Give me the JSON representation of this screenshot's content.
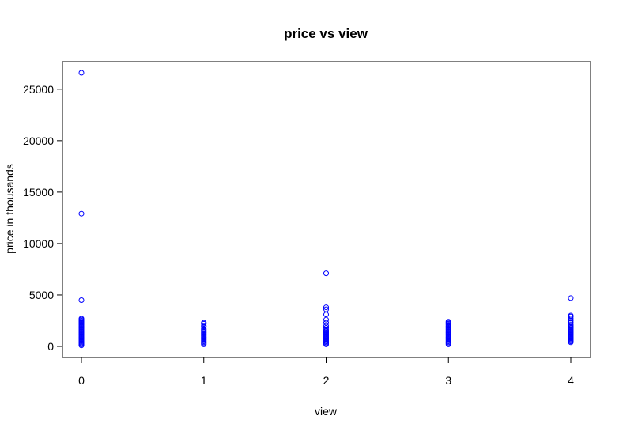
{
  "chart_data": {
    "type": "scatter",
    "title": "price vs view",
    "xlabel": "view",
    "ylabel": "price in thousands",
    "xlim": [
      0,
      4
    ],
    "ylim": [
      0,
      26600
    ],
    "x_ticks": [
      0,
      1,
      2,
      3,
      4
    ],
    "y_ticks": [
      0,
      5000,
      10000,
      15000,
      20000,
      25000
    ],
    "point_color": "#0000ff",
    "grid": false,
    "series": [
      {
        "name": "price",
        "points": [
          {
            "x": 0,
            "y": 26600
          },
          {
            "x": 0,
            "y": 12900
          },
          {
            "x": 0,
            "y": 4500
          },
          {
            "x": 0,
            "y": 2700
          },
          {
            "x": 0,
            "y": 2600
          },
          {
            "x": 0,
            "y": 2500
          },
          {
            "x": 0,
            "y": 2400
          },
          {
            "x": 0,
            "y": 2300
          },
          {
            "x": 0,
            "y": 2200
          },
          {
            "x": 0,
            "y": 2100
          },
          {
            "x": 0,
            "y": 2000
          },
          {
            "x": 0,
            "y": 1900
          },
          {
            "x": 0,
            "y": 1800
          },
          {
            "x": 0,
            "y": 1700
          },
          {
            "x": 0,
            "y": 1600
          },
          {
            "x": 0,
            "y": 1500
          },
          {
            "x": 0,
            "y": 1400
          },
          {
            "x": 0,
            "y": 1300
          },
          {
            "x": 0,
            "y": 1200
          },
          {
            "x": 0,
            "y": 1100
          },
          {
            "x": 0,
            "y": 1000
          },
          {
            "x": 0,
            "y": 900
          },
          {
            "x": 0,
            "y": 800
          },
          {
            "x": 0,
            "y": 700
          },
          {
            "x": 0,
            "y": 600
          },
          {
            "x": 0,
            "y": 500
          },
          {
            "x": 0,
            "y": 400
          },
          {
            "x": 0,
            "y": 300
          },
          {
            "x": 0,
            "y": 200
          },
          {
            "x": 0,
            "y": 100
          },
          {
            "x": 1,
            "y": 2300
          },
          {
            "x": 1,
            "y": 2200
          },
          {
            "x": 1,
            "y": 2000
          },
          {
            "x": 1,
            "y": 1900
          },
          {
            "x": 1,
            "y": 1700
          },
          {
            "x": 1,
            "y": 1600
          },
          {
            "x": 1,
            "y": 1500
          },
          {
            "x": 1,
            "y": 1400
          },
          {
            "x": 1,
            "y": 1300
          },
          {
            "x": 1,
            "y": 1200
          },
          {
            "x": 1,
            "y": 1100
          },
          {
            "x": 1,
            "y": 1000
          },
          {
            "x": 1,
            "y": 900
          },
          {
            "x": 1,
            "y": 800
          },
          {
            "x": 1,
            "y": 700
          },
          {
            "x": 1,
            "y": 600
          },
          {
            "x": 1,
            "y": 500
          },
          {
            "x": 1,
            "y": 400
          },
          {
            "x": 1,
            "y": 300
          },
          {
            "x": 1,
            "y": 200
          },
          {
            "x": 2,
            "y": 7100
          },
          {
            "x": 2,
            "y": 3800
          },
          {
            "x": 2,
            "y": 3600
          },
          {
            "x": 2,
            "y": 3100
          },
          {
            "x": 2,
            "y": 2600
          },
          {
            "x": 2,
            "y": 2300
          },
          {
            "x": 2,
            "y": 2000
          },
          {
            "x": 2,
            "y": 1800
          },
          {
            "x": 2,
            "y": 1600
          },
          {
            "x": 2,
            "y": 1500
          },
          {
            "x": 2,
            "y": 1400
          },
          {
            "x": 2,
            "y": 1300
          },
          {
            "x": 2,
            "y": 1200
          },
          {
            "x": 2,
            "y": 1100
          },
          {
            "x": 2,
            "y": 1000
          },
          {
            "x": 2,
            "y": 900
          },
          {
            "x": 2,
            "y": 800
          },
          {
            "x": 2,
            "y": 700
          },
          {
            "x": 2,
            "y": 600
          },
          {
            "x": 2,
            "y": 500
          },
          {
            "x": 2,
            "y": 400
          },
          {
            "x": 2,
            "y": 300
          },
          {
            "x": 2,
            "y": 200
          },
          {
            "x": 3,
            "y": 2400
          },
          {
            "x": 3,
            "y": 2300
          },
          {
            "x": 3,
            "y": 2200
          },
          {
            "x": 3,
            "y": 2100
          },
          {
            "x": 3,
            "y": 2000
          },
          {
            "x": 3,
            "y": 1900
          },
          {
            "x": 3,
            "y": 1800
          },
          {
            "x": 3,
            "y": 1700
          },
          {
            "x": 3,
            "y": 1600
          },
          {
            "x": 3,
            "y": 1500
          },
          {
            "x": 3,
            "y": 1400
          },
          {
            "x": 3,
            "y": 1300
          },
          {
            "x": 3,
            "y": 1200
          },
          {
            "x": 3,
            "y": 1100
          },
          {
            "x": 3,
            "y": 1000
          },
          {
            "x": 3,
            "y": 900
          },
          {
            "x": 3,
            "y": 800
          },
          {
            "x": 3,
            "y": 700
          },
          {
            "x": 3,
            "y": 600
          },
          {
            "x": 3,
            "y": 500
          },
          {
            "x": 3,
            "y": 400
          },
          {
            "x": 3,
            "y": 300
          },
          {
            "x": 3,
            "y": 200
          },
          {
            "x": 4,
            "y": 4700
          },
          {
            "x": 4,
            "y": 3000
          },
          {
            "x": 4,
            "y": 2900
          },
          {
            "x": 4,
            "y": 2700
          },
          {
            "x": 4,
            "y": 2500
          },
          {
            "x": 4,
            "y": 2300
          },
          {
            "x": 4,
            "y": 2100
          },
          {
            "x": 4,
            "y": 2000
          },
          {
            "x": 4,
            "y": 1900
          },
          {
            "x": 4,
            "y": 1800
          },
          {
            "x": 4,
            "y": 1700
          },
          {
            "x": 4,
            "y": 1600
          },
          {
            "x": 4,
            "y": 1500
          },
          {
            "x": 4,
            "y": 1400
          },
          {
            "x": 4,
            "y": 1300
          },
          {
            "x": 4,
            "y": 1200
          },
          {
            "x": 4,
            "y": 1100
          },
          {
            "x": 4,
            "y": 1000
          },
          {
            "x": 4,
            "y": 900
          },
          {
            "x": 4,
            "y": 800
          },
          {
            "x": 4,
            "y": 700
          },
          {
            "x": 4,
            "y": 600
          },
          {
            "x": 4,
            "y": 500
          },
          {
            "x": 4,
            "y": 400
          }
        ]
      }
    ]
  }
}
